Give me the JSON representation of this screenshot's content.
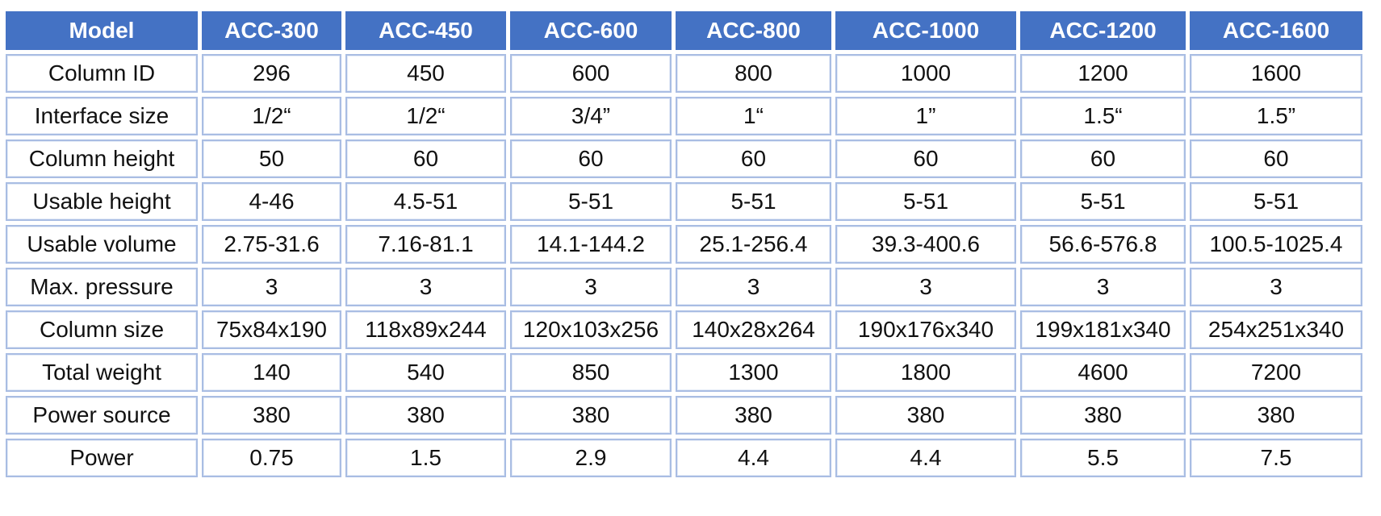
{
  "table": {
    "header": [
      "Model",
      "ACC-300",
      "ACC-450",
      "ACC-600",
      "ACC-800",
      "ACC-1000",
      "ACC-1200",
      "ACC-1600"
    ],
    "rows": [
      {
        "label": "Column ID",
        "values": [
          "296",
          "450",
          "600",
          "800",
          "1000",
          "1200",
          "1600"
        ]
      },
      {
        "label": "Interface size",
        "values": [
          "1/2“",
          "1/2“",
          "3/4”",
          "1“",
          "1”",
          "1.5“",
          "1.5”"
        ]
      },
      {
        "label": "Column height",
        "values": [
          "50",
          "60",
          "60",
          "60",
          "60",
          "60",
          "60"
        ]
      },
      {
        "label": "Usable height",
        "values": [
          "4-46",
          "4.5-51",
          "5-51",
          "5-51",
          "5-51",
          "5-51",
          "5-51"
        ]
      },
      {
        "label": "Usable volume",
        "values": [
          "2.75-31.6",
          "7.16-81.1",
          "14.1-144.2",
          "25.1-256.4",
          "39.3-400.6",
          "56.6-576.8",
          "100.5-1025.4"
        ]
      },
      {
        "label": "Max. pressure",
        "values": [
          "3",
          "3",
          "3",
          "3",
          "3",
          "3",
          "3"
        ]
      },
      {
        "label": "Column size",
        "values": [
          "75x84x190",
          "118x89x244",
          "120x103x256",
          "140x28x264",
          "190x176x340",
          "199x181x340",
          "254x251x340"
        ]
      },
      {
        "label": "Total weight",
        "values": [
          "140",
          "540",
          "850",
          "1300",
          "1800",
          "4600",
          "7200"
        ]
      },
      {
        "label": "Power source",
        "values": [
          "380",
          "380",
          "380",
          "380",
          "380",
          "380",
          "380"
        ]
      },
      {
        "label": "Power",
        "values": [
          "0.75",
          "1.5",
          "2.9",
          "4.4",
          "4.4",
          "5.5",
          "7.5"
        ]
      }
    ]
  },
  "colors": {
    "header_bg": "#4472c4",
    "header_text": "#ffffff",
    "cell_border": "#a9bde3",
    "cell_text": "#111111"
  }
}
